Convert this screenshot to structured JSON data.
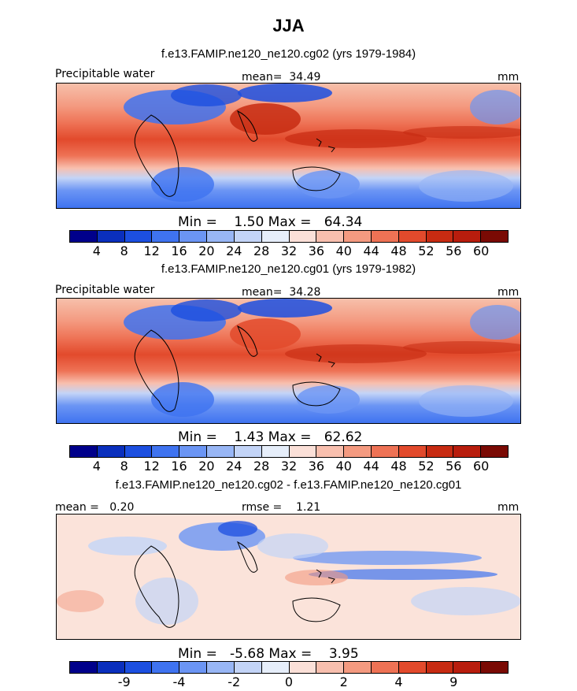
{
  "title": "JJA",
  "chart_data": [
    {
      "type": "heatmap",
      "title": "f.e13.FAMIP.ne120_ne120.cg02 (yrs 1979-1984)",
      "variable": "Precipitable water",
      "units": "mm",
      "mean_text": "mean=  34.49",
      "stats_text": "Min =    1.50 Max =   64.34",
      "min": 1.5,
      "max": 64.34,
      "colorbar_levels": [
        "4",
        "8",
        "12",
        "16",
        "20",
        "24",
        "28",
        "32",
        "36",
        "40",
        "44",
        "48",
        "52",
        "56",
        "60"
      ],
      "colors": [
        "#00008b",
        "#0a2fbd",
        "#1c4fe0",
        "#3f73f0",
        "#6b95f4",
        "#98b6f5",
        "#c3d4f7",
        "#e6eefa",
        "#fbe0d8",
        "#f8bfae",
        "#f49a80",
        "#ee7255",
        "#e24a2c",
        "#c72b12",
        "#b81d0d",
        "#7a0a04"
      ]
    },
    {
      "type": "heatmap",
      "title": "f.e13.FAMIP.ne120_ne120.cg01 (yrs 1979-1982)",
      "variable": "Precipitable water",
      "units": "mm",
      "mean_text": "mean=  34.28",
      "stats_text": "Min =    1.43 Max =   62.62",
      "min": 1.43,
      "max": 62.62,
      "colorbar_levels": [
        "4",
        "8",
        "12",
        "16",
        "20",
        "24",
        "28",
        "32",
        "36",
        "40",
        "44",
        "48",
        "52",
        "56",
        "60"
      ],
      "colors": [
        "#00008b",
        "#0a2fbd",
        "#1c4fe0",
        "#3f73f0",
        "#6b95f4",
        "#98b6f5",
        "#c3d4f7",
        "#e6eefa",
        "#fbe0d8",
        "#f8bfae",
        "#f49a80",
        "#ee7255",
        "#e24a2c",
        "#c72b12",
        "#b81d0d",
        "#7a0a04"
      ]
    },
    {
      "type": "heatmap",
      "title": "f.e13.FAMIP.ne120_ne120.cg02 - f.e13.FAMIP.ne120_ne120.cg01",
      "units": "mm",
      "mean_text": "mean =   0.20",
      "rmse_text": "rmse =    1.21",
      "stats_text": "Min =   -5.68 Max =    3.95",
      "min": -5.68,
      "max": 3.95,
      "colorbar_levels": [
        "-9",
        "-4",
        "-2",
        "0",
        "2",
        "4",
        "9"
      ],
      "colors": [
        "#00008b",
        "#0a2fbd",
        "#1c4fe0",
        "#3f73f0",
        "#6b95f4",
        "#98b6f5",
        "#c3d4f7",
        "#e6eefa",
        "#fbe0d8",
        "#f8bfae",
        "#f49a80",
        "#ee7255",
        "#e24a2c",
        "#c72b12",
        "#b81d0d",
        "#7a0a04"
      ]
    }
  ]
}
